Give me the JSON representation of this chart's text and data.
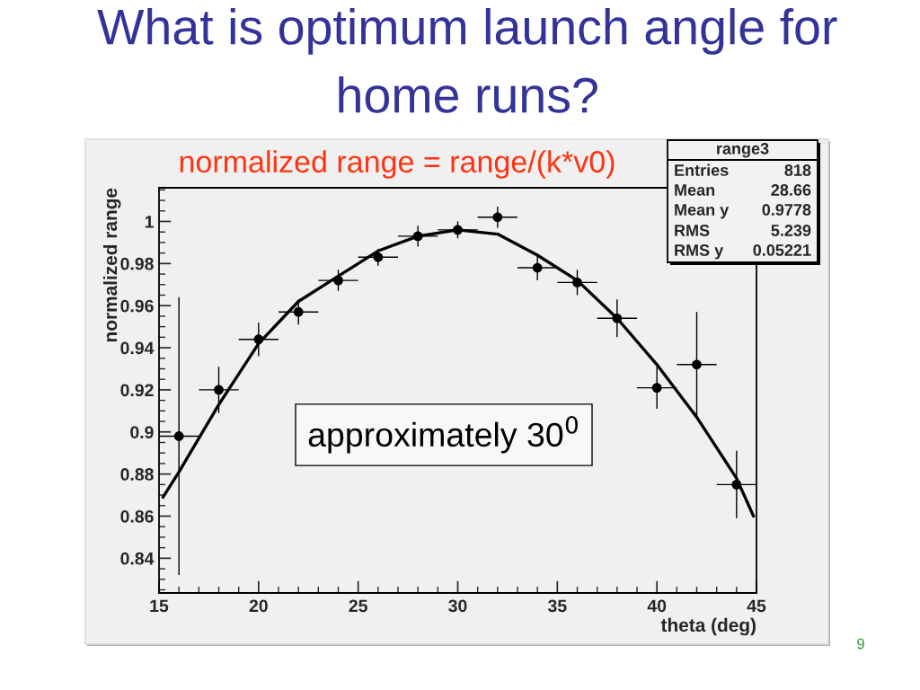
{
  "chart_data": {
    "type": "scatter",
    "title": "What is optimum launch angle for home runs?",
    "subtitle": "normalized range = range/(k*v0)",
    "xlabel": "theta (deg)",
    "ylabel": "normalized range",
    "annotations": [
      "approximately 30$^{0}$",
      "range3",
      "Entries",
      "818",
      "Mean",
      "28.66",
      "Mean y",
      "0.9778",
      "RMS",
      "5.239",
      "RMS y",
      "0.05221",
      "9"
    ],
    "xlim": [
      15,
      45
    ],
    "xticks": [
      15,
      20,
      25,
      30,
      35,
      40,
      45
    ],
    "ylim": [
      0.8235,
      1.016
    ],
    "yticks": [
      0.84,
      0.86,
      0.88,
      0.9,
      0.92,
      0.94,
      0.96,
      0.98,
      1
    ],
    "series": [
      {
        "color": "#000000",
        "marker": "circle",
        "x": [
          16,
          18,
          20,
          22,
          24,
          26,
          28,
          30,
          32,
          34,
          36,
          38,
          40,
          42,
          44
        ],
        "values": [
          0.898,
          0.92,
          0.944,
          0.957,
          0.972,
          0.983,
          0.993,
          0.996,
          1.002,
          0.978,
          0.971,
          0.954,
          0.921,
          0.932,
          0.875
        ],
        "errors": [
          0.066,
          0.011,
          0.008,
          0.006,
          0.005,
          0.004,
          0.005,
          0.004,
          0.005,
          0.006,
          0.006,
          0.009,
          0.01,
          0.025,
          0.016
        ],
        "xerrors": [
          1,
          1,
          1,
          1,
          1,
          1,
          1,
          1,
          1,
          1,
          1,
          1,
          1,
          1,
          1
        ]
      },
      {
        "type": "line",
        "color": "#000000",
        "x": [
          15.2,
          16,
          18,
          20,
          22,
          24,
          26,
          28,
          30,
          32,
          34,
          36,
          38,
          40,
          42,
          44,
          44.85
        ],
        "values": [
          0.869,
          0.881,
          0.913,
          0.942,
          0.962,
          0.974,
          0.986,
          0.993,
          0.996,
          0.994,
          0.984,
          0.972,
          0.954,
          0.932,
          0.907,
          0.878,
          0.86
        ]
      }
    ]
  }
}
